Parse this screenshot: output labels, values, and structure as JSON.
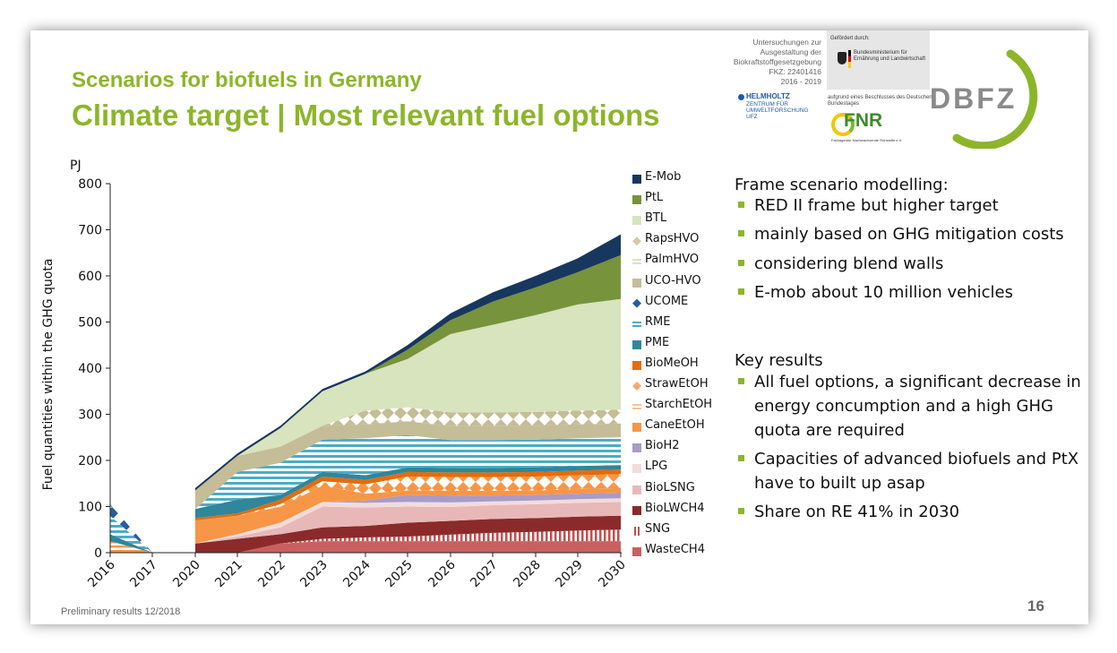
{
  "header": {
    "subtitle": "Scenarios for biofuels in Germany",
    "title": "Climate target | Most relevant fuel options"
  },
  "logos": {
    "funding_text": [
      "Untersuchungen zur",
      "Ausgestaltung der",
      "Biokraftstoffgesetzgebung",
      "FKZ: 22401416",
      "2016 - 2019"
    ],
    "sponsor_heading": "Gefördert durch:",
    "ministry": "Bundesministerium für Ernährung und Landwirtschaft",
    "bundestag_note": "aufgrund eines Beschlusses des Deutschen Bundestages",
    "fnr": "FNR",
    "fnr_sub": "Fachagentur Nachwachsende Rohstoffe e.V.",
    "helmholtz_name": "HELMHOLTZ",
    "helmholtz_sub": "ZENTRUM FÜR UMWELTFORSCHUNG UFZ",
    "dbfz": "DBFZ"
  },
  "chart_data": {
    "type": "area",
    "ylabel": "Fuel quantities within the GHG quota",
    "yunit": "PJ",
    "ylim": [
      0,
      800
    ],
    "yticks": [
      0,
      100,
      200,
      300,
      400,
      500,
      600,
      700,
      800
    ],
    "x": [
      "2016",
      "2017",
      "2020",
      "2021",
      "2022",
      "2023",
      "2024",
      "2025",
      "2026",
      "2027",
      "2028",
      "2029",
      "2030"
    ],
    "grid": false,
    "legend_position": "right",
    "series": [
      {
        "name": "WasteCH4",
        "color": "#c96060",
        "values": [
          0,
          0,
          0,
          0,
          20,
          25,
          25,
          25,
          25,
          25,
          25,
          25,
          25
        ]
      },
      {
        "name": "SNG",
        "color": "#c0504d",
        "values": [
          0,
          0,
          0,
          0,
          0,
          5,
          8,
          10,
          14,
          18,
          20,
          23,
          25
        ]
      },
      {
        "name": "BioLWCH4",
        "color": "#8b2a2a",
        "values": [
          0,
          0,
          20,
          30,
          20,
          25,
          25,
          30,
          30,
          30,
          30,
          30,
          30
        ]
      },
      {
        "name": "BioLSNG",
        "color": "#e8b8b8",
        "values": [
          0,
          0,
          0,
          5,
          15,
          45,
          40,
          35,
          30,
          30,
          30,
          30,
          30
        ]
      },
      {
        "name": "LPG",
        "color": "#f2dcdb",
        "values": [
          0,
          0,
          0,
          5,
          10,
          10,
          10,
          10,
          10,
          8,
          8,
          8,
          8
        ]
      },
      {
        "name": "BioH2",
        "color": "#a99bc8",
        "values": [
          0,
          0,
          0,
          0,
          0,
          0,
          5,
          15,
          15,
          13,
          12,
          12,
          12
        ]
      },
      {
        "name": "CaneEtOH",
        "color": "#f79646",
        "values": [
          0,
          0,
          50,
          40,
          35,
          35,
          15,
          10,
          10,
          10,
          10,
          10,
          10
        ]
      },
      {
        "name": "StarchEtOH",
        "color": "#fac090",
        "values": [
          25,
          0,
          0,
          0,
          0,
          0,
          0,
          0,
          0,
          0,
          0,
          0,
          0
        ]
      },
      {
        "name": "StrawEtOH",
        "color": "#f9a86b",
        "values": [
          0,
          0,
          0,
          0,
          5,
          10,
          20,
          30,
          30,
          30,
          30,
          30,
          30
        ]
      },
      {
        "name": "BioMeOH",
        "color": "#e46c0a",
        "values": [
          0,
          0,
          5,
          5,
          10,
          10,
          10,
          10,
          10,
          10,
          10,
          10,
          10
        ]
      },
      {
        "name": "PME",
        "color": "#31859c",
        "values": [
          15,
          0,
          20,
          30,
          10,
          10,
          10,
          10,
          10,
          10,
          10,
          10,
          10
        ]
      },
      {
        "name": "RME",
        "color": "#4bacc6",
        "values": [
          40,
          0,
          0,
          60,
          70,
          70,
          80,
          70,
          60,
          60,
          60,
          60,
          60
        ]
      },
      {
        "name": "UCOME",
        "color": "#215f9a",
        "values": [
          25,
          0,
          0,
          0,
          0,
          0,
          0,
          0,
          0,
          0,
          0,
          0,
          0
        ]
      },
      {
        "name": "UCO-HVO",
        "color": "#c4bd97",
        "values": [
          0,
          0,
          40,
          35,
          35,
          30,
          30,
          30,
          30,
          30,
          30,
          30,
          30
        ]
      },
      {
        "name": "PalmHVO",
        "color": "#d7e4bd",
        "values": [
          0,
          0,
          0,
          0,
          0,
          0,
          0,
          0,
          0,
          0,
          0,
          0,
          0
        ]
      },
      {
        "name": "RapsHVO",
        "color": "#d9c9a8",
        "values": [
          0,
          0,
          0,
          0,
          0,
          0,
          30,
          30,
          30,
          30,
          30,
          30,
          30
        ]
      },
      {
        "name": "BTL",
        "color": "#d7e4bd",
        "values": [
          0,
          0,
          0,
          0,
          40,
          75,
          80,
          105,
          170,
          190,
          210,
          230,
          240
        ]
      },
      {
        "name": "PtL",
        "color": "#77933c",
        "values": [
          0,
          0,
          0,
          0,
          0,
          0,
          0,
          20,
          30,
          50,
          60,
          70,
          95
        ]
      },
      {
        "name": "E-Mob",
        "color": "#17375e",
        "values": [
          0,
          0,
          5,
          5,
          5,
          5,
          5,
          10,
          15,
          20,
          25,
          30,
          45
        ]
      }
    ]
  },
  "bullets": {
    "head1": "Frame scenario modelling:",
    "list1": [
      "RED II frame but higher target",
      "mainly based on GHG mitigation costs",
      "considering blend walls",
      "E-mob about 10 million vehicles"
    ],
    "head2": "Key results",
    "list2": [
      "All fuel options, a significant decrease in energy concumption and a high GHG quota are required",
      "Capacities of advanced biofuels and PtX have to built up asap",
      "Share on RE 41% in 2030"
    ]
  },
  "footer": {
    "note": "Preliminary results 12/2018",
    "page": "16"
  }
}
